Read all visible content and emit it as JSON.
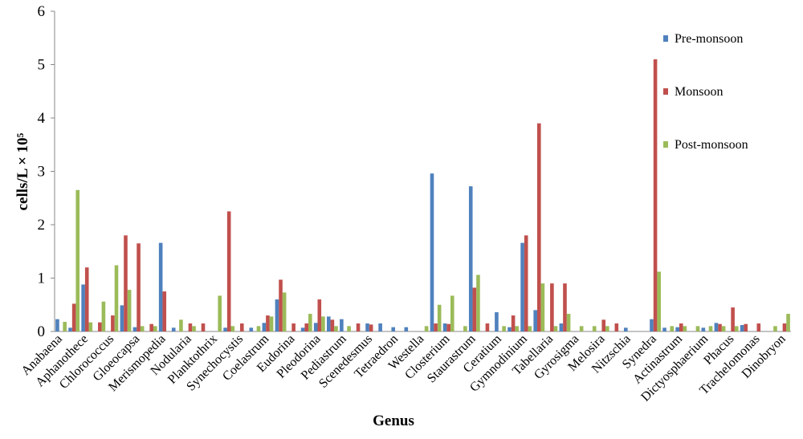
{
  "chart_data": {
    "type": "bar",
    "xlabel": "Genus",
    "ylabel": "cells/L × 10⁵",
    "categories": [
      "Anabaena",
      null,
      "Aphanothece",
      null,
      "Chlorococcus",
      null,
      "Gloeocapsa",
      null,
      "Merismopedia",
      null,
      "Nodularia",
      null,
      "Planktothrix",
      null,
      "Synechocystis",
      null,
      "Coelastrum",
      null,
      "Eudorina",
      null,
      "Pleodorina",
      null,
      "Pediastrum",
      null,
      "Scenedesmus",
      null,
      "Tetraedron",
      null,
      "Westella",
      null,
      "Closterium",
      null,
      "Staurastrum",
      null,
      "Ceratium",
      null,
      "Gymnodinium",
      null,
      "Tabellaria",
      null,
      "Gyrosigma",
      null,
      "Melosira",
      null,
      "Nitzschia",
      null,
      "Synedra",
      null,
      "Actinastrum",
      null,
      "Dictyosphaerium",
      null,
      "Phacus",
      null,
      "Trachelomonas",
      null,
      "Dinobryon"
    ],
    "series": [
      {
        "name": "Pre-monsoon",
        "color": "#4f81bd",
        "values": [
          0.23,
          0.07,
          0.88,
          0,
          0,
          0.49,
          0.08,
          0,
          1.66,
          0.07,
          0,
          0,
          0,
          0.07,
          0,
          0.07,
          0.16,
          0.6,
          0,
          0.07,
          0.16,
          0.28,
          0.23,
          0,
          0.15,
          0.15,
          0.08,
          0.08,
          0,
          2.96,
          0.15,
          0,
          2.72,
          0,
          0.36,
          0.08,
          1.66,
          0.4,
          0,
          0.15,
          0,
          0,
          0,
          0,
          0.07,
          0,
          0.23,
          0.07,
          0.08,
          0,
          0.07,
          0.16,
          0,
          0.12,
          0,
          0,
          0
        ]
      },
      {
        "name": "Monsoon",
        "color": "#c0504d",
        "values": [
          0,
          0.52,
          1.2,
          0.17,
          0.3,
          1.8,
          1.65,
          0.14,
          0.75,
          0,
          0.15,
          0.15,
          0,
          2.25,
          0.15,
          0,
          0.3,
          0.97,
          0.15,
          0.15,
          0.6,
          0.22,
          0,
          0.15,
          0.13,
          0,
          0,
          0,
          0,
          0.15,
          0.14,
          0,
          0.82,
          0.15,
          0,
          0.3,
          1.8,
          3.9,
          0.9,
          0.9,
          0,
          0,
          0.22,
          0.15,
          0,
          0,
          5.1,
          0,
          0.15,
          0,
          0,
          0.14,
          0.45,
          0.14,
          0.15,
          0,
          0.15
        ]
      },
      {
        "name": "Post-monsoon",
        "color": "#9bbb59",
        "values": [
          0.18,
          2.65,
          0.17,
          0.56,
          1.24,
          0.78,
          0.1,
          0.1,
          0,
          0.22,
          0.1,
          0,
          0.67,
          0.1,
          0,
          0.1,
          0.28,
          0.73,
          0,
          0.33,
          0.28,
          0.1,
          0.1,
          0,
          0,
          0,
          0,
          0,
          0.1,
          0.5,
          0.67,
          0.1,
          1.06,
          0,
          0.1,
          0.1,
          0.1,
          0.9,
          0.1,
          0.33,
          0.1,
          0.1,
          0.1,
          0,
          0,
          0,
          1.12,
          0.1,
          0.1,
          0.1,
          0.1,
          0.1,
          0.1,
          0,
          0,
          0.1,
          0.33
        ]
      }
    ],
    "ylim": [
      0,
      6
    ],
    "yticks": [
      0,
      1,
      2,
      3,
      4,
      5,
      6
    ],
    "legend": "upper right"
  }
}
